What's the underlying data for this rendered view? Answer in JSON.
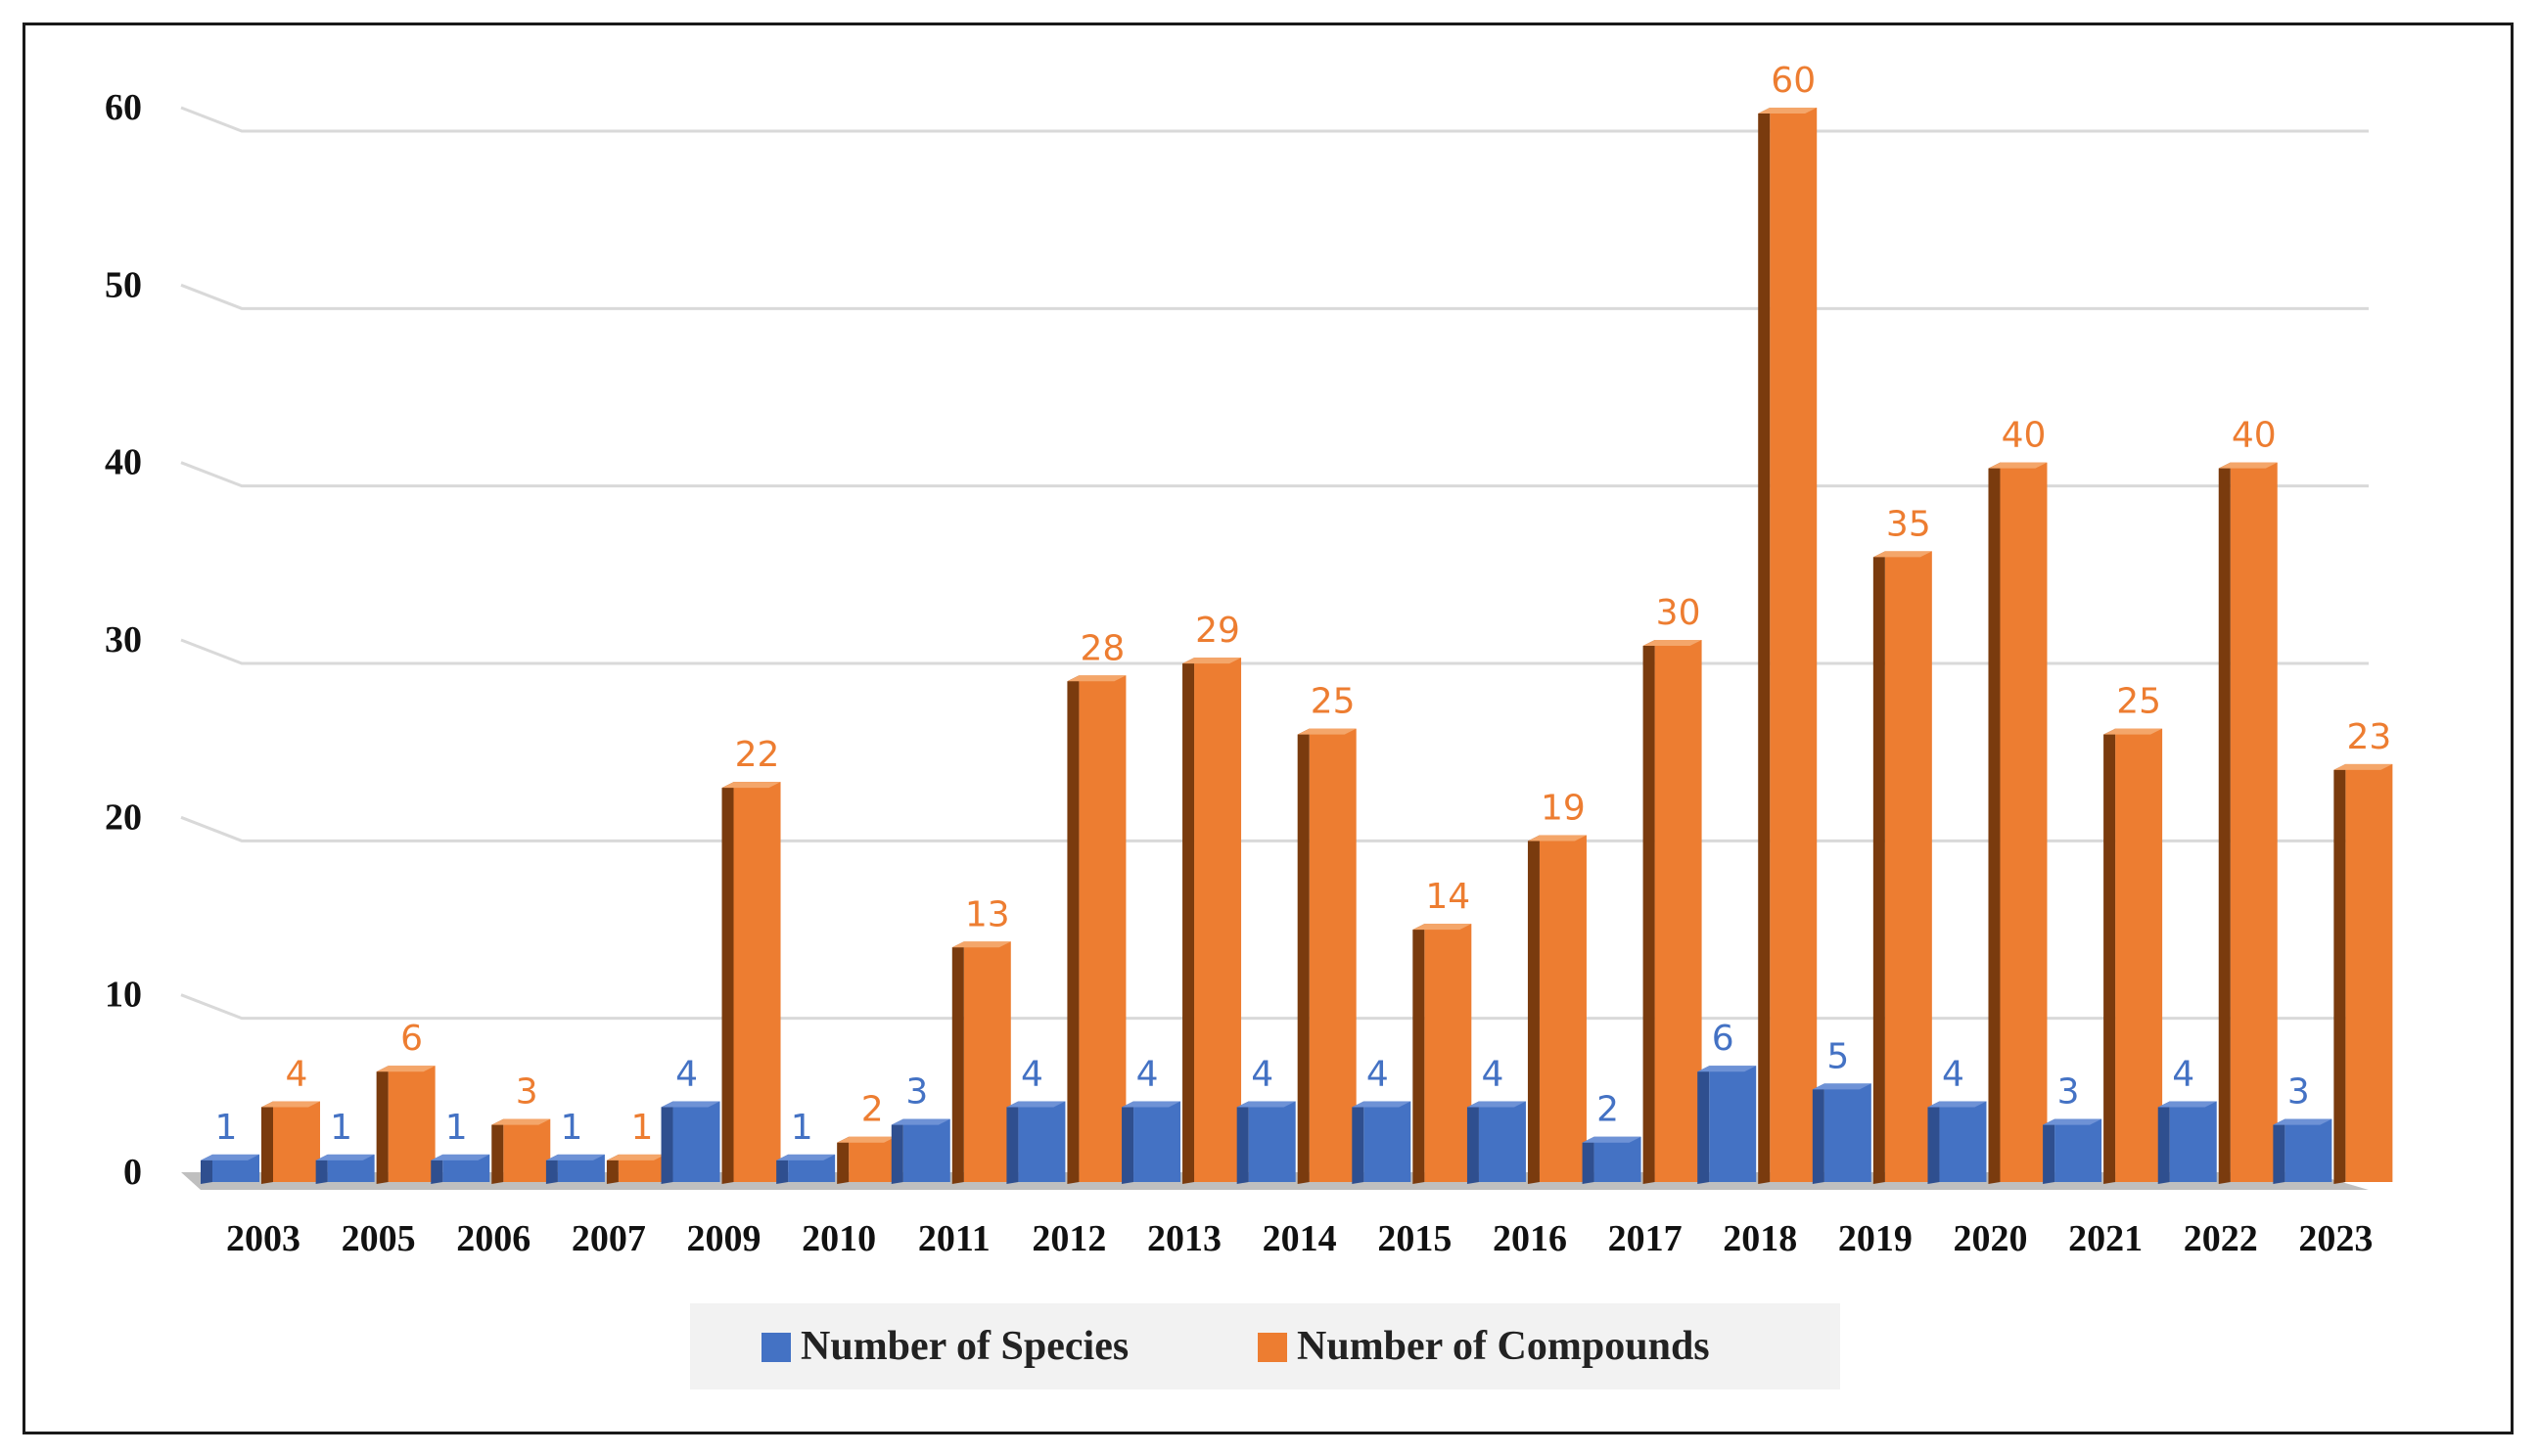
{
  "chart_data": {
    "type": "bar",
    "categories": [
      "2003",
      "2005",
      "2006",
      "2007",
      "2009",
      "2010",
      "2011",
      "2012",
      "2013",
      "2014",
      "2015",
      "2016",
      "2017",
      "2018",
      "2019",
      "2020",
      "2021",
      "2022",
      "2023"
    ],
    "series": [
      {
        "name": "Number of Species",
        "values": [
          1,
          1,
          1,
          1,
          4,
          1,
          3,
          4,
          4,
          4,
          4,
          4,
          2,
          6,
          5,
          4,
          3,
          4,
          3
        ]
      },
      {
        "name": "Number of Compounds",
        "values": [
          4,
          6,
          3,
          1,
          22,
          2,
          13,
          28,
          29,
          25,
          14,
          19,
          30,
          60,
          35,
          40,
          25,
          40,
          23
        ]
      }
    ],
    "yticks": [
      "0",
      "10",
      "20",
      "30",
      "40",
      "50",
      "60"
    ],
    "ylim": [
      0,
      60
    ],
    "grid": true,
    "legend_position": "bottom",
    "colors": {
      "species_front": "#4472C4",
      "species_side": "#2F4F8F",
      "species_top": "#6E92D6",
      "species_label": "#4472C4",
      "compounds_front": "#ED7D31",
      "compounds_side": "#7A3B0E",
      "compounds_top": "#F4A66A",
      "compounds_label": "#ED7D31",
      "gridline": "#D9D9D9",
      "floor": "#BFBFBF"
    }
  }
}
